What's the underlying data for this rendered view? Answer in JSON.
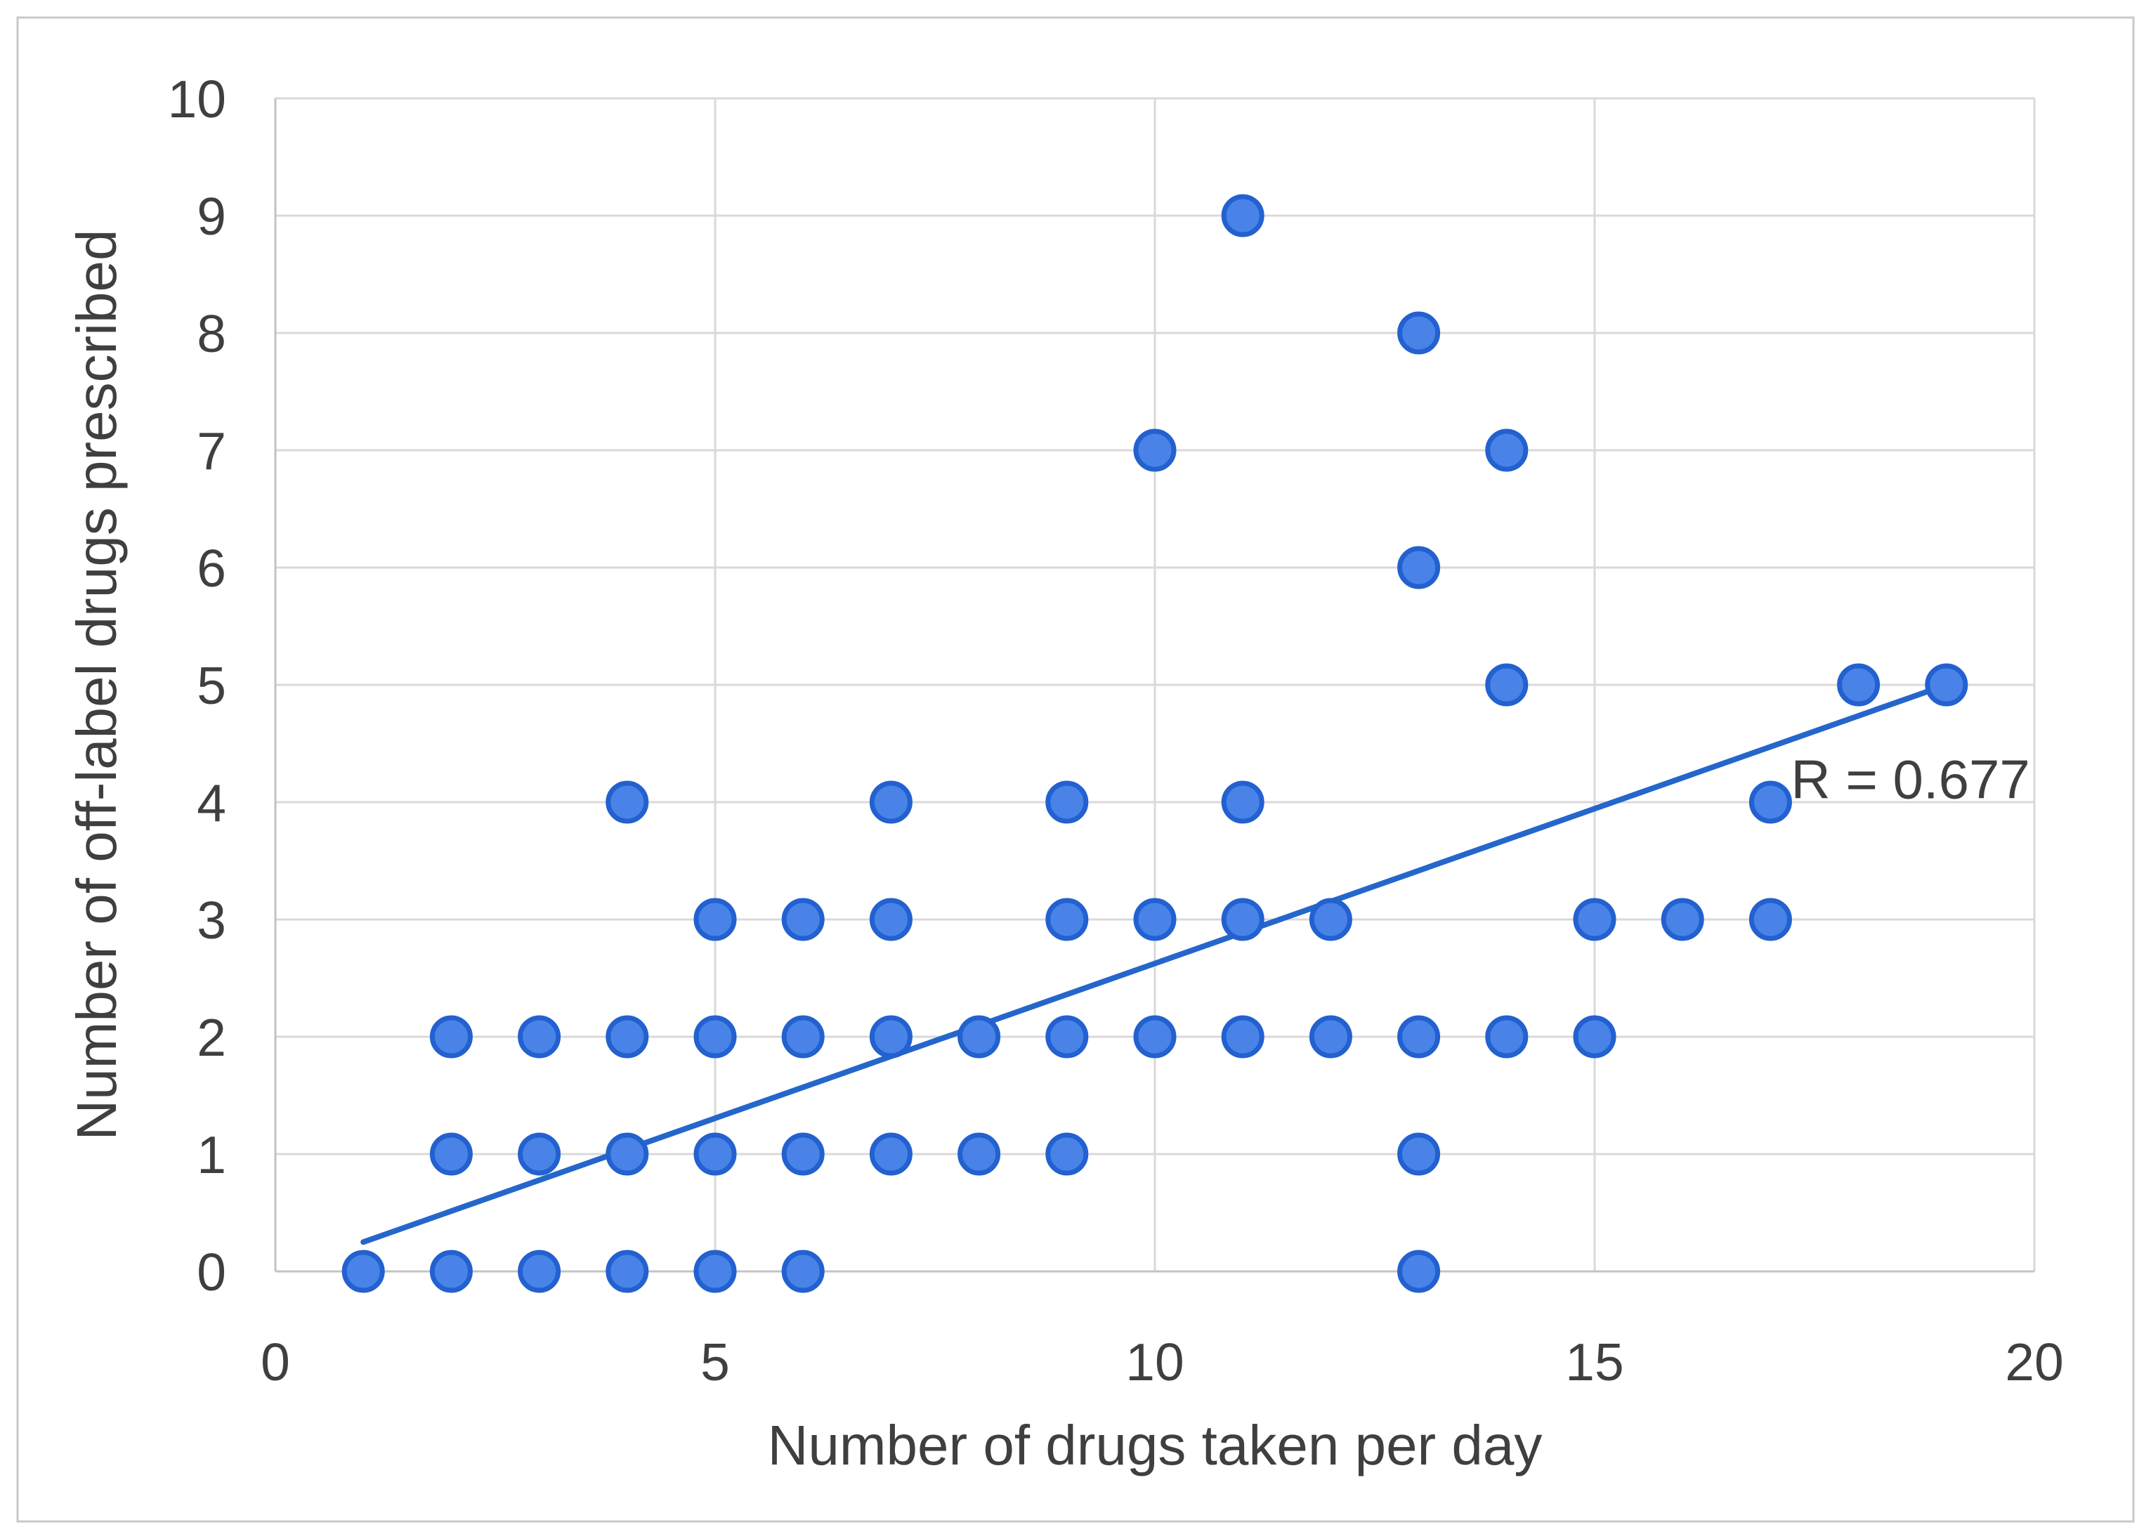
{
  "figure": {
    "background": "#ffffff",
    "border_color": "#c9c9c9"
  },
  "chart_data": {
    "type": "scatter",
    "title": "",
    "xlabel": "Number of drugs taken per day",
    "ylabel": "Number of off-label drugs prescribed",
    "xlim": [
      0,
      20
    ],
    "ylim": [
      0,
      10
    ],
    "x_ticks": [
      "0",
      "5",
      "10",
      "15",
      "20"
    ],
    "y_ticks": [
      "0",
      "1",
      "2",
      "3",
      "4",
      "5",
      "6",
      "7",
      "8",
      "9",
      "10"
    ],
    "grid": {
      "horizontal_step": 1,
      "vertical_step": 5,
      "gridline_color": "#d9d9d9",
      "axis_color": "#c3c3c3"
    },
    "legend_position": "none",
    "points": [
      [
        1,
        0
      ],
      [
        2,
        0
      ],
      [
        3,
        0
      ],
      [
        4,
        0
      ],
      [
        5,
        0
      ],
      [
        6,
        0
      ],
      [
        13,
        0
      ],
      [
        2,
        1
      ],
      [
        3,
        1
      ],
      [
        4,
        1
      ],
      [
        5,
        1
      ],
      [
        6,
        1
      ],
      [
        7,
        1
      ],
      [
        8,
        1
      ],
      [
        9,
        1
      ],
      [
        13,
        1
      ],
      [
        2,
        2
      ],
      [
        3,
        2
      ],
      [
        4,
        2
      ],
      [
        5,
        2
      ],
      [
        6,
        2
      ],
      [
        7,
        2
      ],
      [
        8,
        2
      ],
      [
        9,
        2
      ],
      [
        10,
        2
      ],
      [
        11,
        2
      ],
      [
        12,
        2
      ],
      [
        13,
        2
      ],
      [
        14,
        2
      ],
      [
        15,
        2
      ],
      [
        5,
        3
      ],
      [
        6,
        3
      ],
      [
        7,
        3
      ],
      [
        9,
        3
      ],
      [
        10,
        3
      ],
      [
        11,
        3
      ],
      [
        12,
        3
      ],
      [
        15,
        3
      ],
      [
        16,
        3
      ],
      [
        17,
        3
      ],
      [
        4,
        4
      ],
      [
        7,
        4
      ],
      [
        9,
        4
      ],
      [
        11,
        4
      ],
      [
        17,
        4
      ],
      [
        14,
        5
      ],
      [
        18,
        5
      ],
      [
        19,
        5
      ],
      [
        13,
        6
      ],
      [
        10,
        7
      ],
      [
        14,
        7
      ],
      [
        13,
        8
      ],
      [
        11,
        9
      ]
    ],
    "trendline": {
      "x1": 1,
      "y1": 0.25,
      "x2": 19,
      "y2": 5.0,
      "label": "R = 0.677",
      "label_anchor_x": 19.95,
      "label_anchor_y": 4.2,
      "color": "#2566cb"
    },
    "colors": {
      "marker_fill": "#4a83e8",
      "marker_stroke": "#2261cf",
      "text": "#3f3f3f"
    }
  }
}
